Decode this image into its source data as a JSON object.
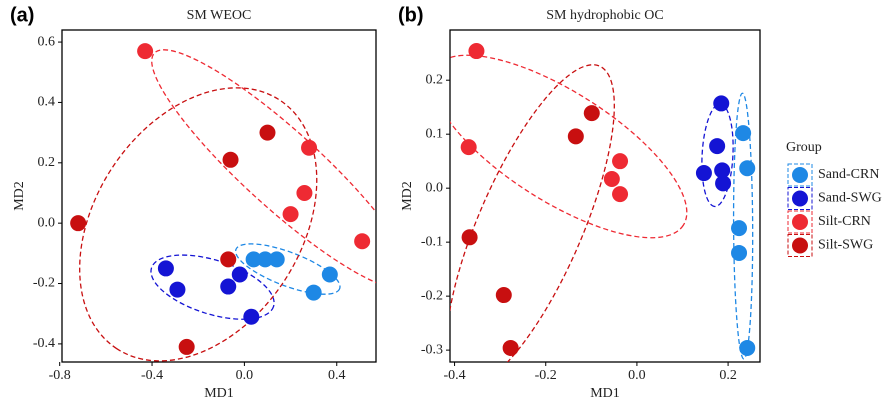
{
  "chart_data": [
    {
      "type": "scatter",
      "label": "(a)",
      "title": "SM WEOC",
      "x_label": "MD1",
      "y_label": "MD2",
      "xlim": [
        -0.79,
        0.57
      ],
      "ylim": [
        -0.46,
        0.64
      ],
      "xticks": [
        -0.8,
        -0.4,
        {
          "value": 0,
          "label": "0.0"
        },
        0.4
      ],
      "yticks": [
        0.6,
        0.4,
        0.2,
        {
          "value": 0,
          "label": "0.0"
        },
        -0.2,
        -0.4
      ],
      "series": [
        {
          "name": "Sand-CRN",
          "color": "#1e88e5",
          "x": [
            0.04,
            0.09,
            0.14,
            0.3,
            0.37
          ],
          "values": [
            -0.12,
            -0.12,
            -0.12,
            -0.23,
            -0.17
          ]
        },
        {
          "name": "Sand-SWG",
          "color": "#1414d4",
          "x": [
            -0.34,
            -0.29,
            -0.02,
            -0.07,
            0.03
          ],
          "values": [
            -0.15,
            -0.22,
            -0.17,
            -0.21,
            -0.31
          ]
        },
        {
          "name": "Silt-CRN",
          "color": "#ee2a33",
          "x": [
            -0.43,
            0.51,
            0.28,
            0.26,
            0.2
          ],
          "values": [
            0.57,
            -0.06,
            0.25,
            0.1,
            0.03
          ]
        },
        {
          "name": "Silt-SWG",
          "color": "#c80f10",
          "x": [
            -0.72,
            0.1,
            -0.06,
            -0.25,
            -0.07
          ],
          "values": [
            0.0,
            0.3,
            0.21,
            -0.41,
            -0.12
          ]
        }
      ]
    },
    {
      "type": "scatter",
      "label": "(b)",
      "title": "SM hydrophobic OC",
      "x_label": "MD1",
      "y_label": "MD2",
      "xlim": [
        -0.41,
        0.27
      ],
      "ylim": [
        -0.322,
        0.293
      ],
      "xticks": [
        -0.4,
        -0.2,
        {
          "value": 0,
          "label": "0.0"
        },
        0.2
      ],
      "yticks": [
        0.2,
        0.1,
        {
          "value": 0,
          "label": "0.0"
        },
        -0.1,
        -0.2,
        -0.3
      ],
      "legend": {
        "title": "Group",
        "position": "right"
      },
      "series": [
        {
          "name": "Sand-CRN",
          "color": "#1e88e5",
          "x": [
            0.233,
            0.242,
            0.224,
            0.224,
            0.242
          ],
          "values": [
            0.102,
            0.037,
            -0.074,
            -0.12,
            -0.296
          ]
        },
        {
          "name": "Sand-SWG",
          "color": "#1414d4",
          "x": [
            0.185,
            0.176,
            0.187,
            0.147,
            0.189
          ],
          "values": [
            0.157,
            0.078,
            0.033,
            0.028,
            0.009
          ]
        },
        {
          "name": "Silt-CRN",
          "color": "#ee2a33",
          "x": [
            -0.352,
            -0.369,
            -0.037,
            -0.055,
            -0.037
          ],
          "values": [
            0.254,
            0.076,
            0.05,
            0.017,
            -0.011
          ]
        },
        {
          "name": "Silt-SWG",
          "color": "#c80f10",
          "x": [
            -0.367,
            -0.292,
            -0.277,
            -0.134,
            -0.099
          ],
          "values": [
            -0.091,
            -0.198,
            -0.296,
            0.096,
            0.139
          ]
        }
      ]
    }
  ]
}
